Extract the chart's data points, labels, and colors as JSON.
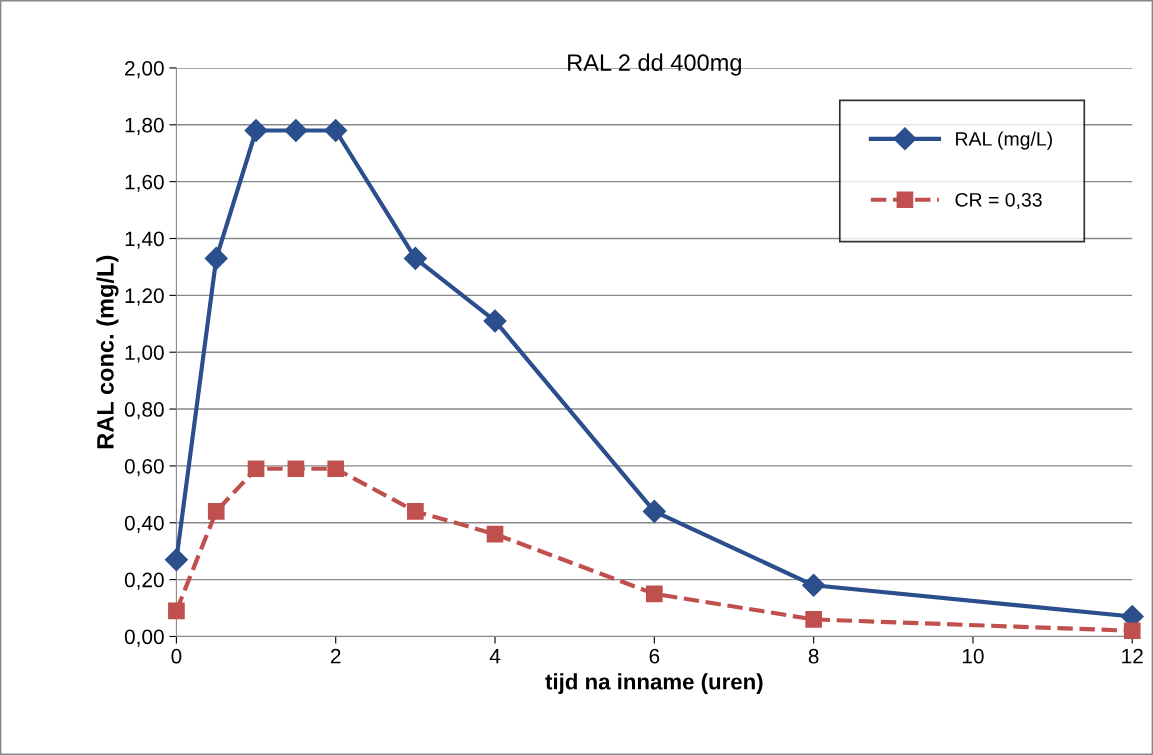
{
  "chart_data": {
    "type": "line",
    "title": "RAL 2 dd 400mg",
    "xlabel": "tijd na inname (uren)",
    "ylabel": "RAL conc. (mg/L)",
    "xlim": [
      0,
      12
    ],
    "xticks": [
      0,
      2,
      4,
      6,
      8,
      10,
      12
    ],
    "ylim": [
      0,
      2
    ],
    "yticks": [
      {
        "value": 0,
        "label": "0,00"
      },
      {
        "value": 0.2,
        "label": "0,20"
      },
      {
        "value": 0.4,
        "label": "0,40"
      },
      {
        "value": 0.6,
        "label": "0,60"
      },
      {
        "value": 0.8,
        "label": "0,80"
      },
      {
        "value": 1.0,
        "label": "1,00"
      },
      {
        "value": 1.2,
        "label": "1,20"
      },
      {
        "value": 1.4,
        "label": "1,40"
      },
      {
        "value": 1.6,
        "label": "1,60"
      },
      {
        "value": 1.8,
        "label": "1,80"
      },
      {
        "value": 2.0,
        "label": "2,00"
      }
    ],
    "x": [
      0,
      0.5,
      1,
      1.5,
      2,
      3,
      4,
      6,
      8,
      12
    ],
    "series": [
      {
        "name": "RAL (mg/L)",
        "color": "#2b4e8c",
        "marker": "diamond",
        "line_style": "solid",
        "values": [
          0.27,
          1.33,
          1.78,
          1.78,
          1.78,
          1.33,
          1.11,
          0.44,
          0.18,
          0.07
        ]
      },
      {
        "name": "CR = 0,33",
        "color": "#c0504d",
        "marker": "square",
        "line_style": "dashed",
        "values": [
          0.09,
          0.44,
          0.59,
          0.59,
          0.59,
          0.44,
          0.36,
          0.15,
          0.06,
          0.02
        ]
      }
    ],
    "grid": "y",
    "legend": "top right"
  }
}
